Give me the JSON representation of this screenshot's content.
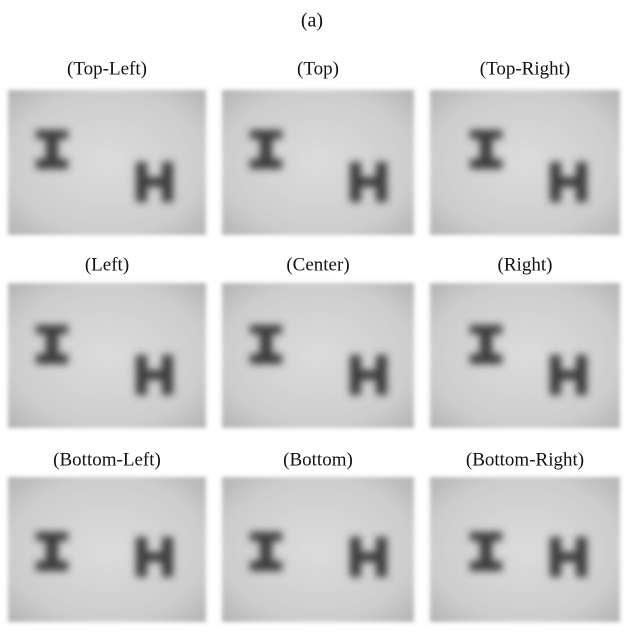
{
  "figure": {
    "title": "(a)",
    "panels": [
      {
        "label": "(Top-Left)"
      },
      {
        "label": "(Top)"
      },
      {
        "label": "(Top-Right)"
      },
      {
        "label": "(Left)"
      },
      {
        "label": "(Center)"
      },
      {
        "label": "(Right)"
      },
      {
        "label": "(Bottom-Left)"
      },
      {
        "label": "(Bottom)"
      },
      {
        "label": "(Bottom-Right)"
      }
    ]
  }
}
